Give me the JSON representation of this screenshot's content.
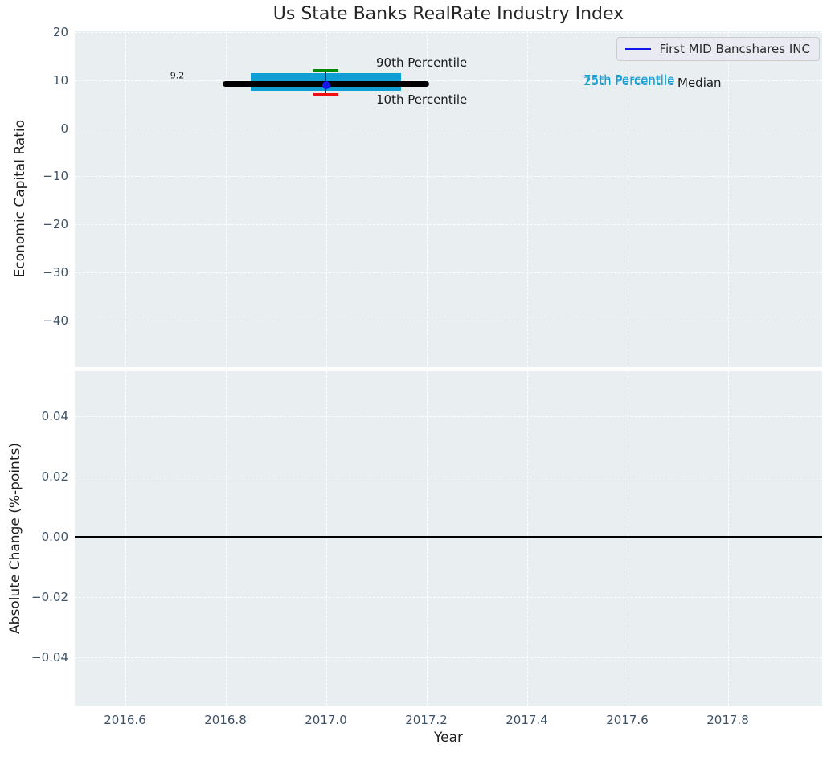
{
  "title": "Us State Banks RealRate Industry Index",
  "legend": {
    "label": "First MID Bancshares INC"
  },
  "colors": {
    "plot_bg": "#e9eef0",
    "grid": "#ffffff",
    "tick_label": "#3d5166",
    "box_fill": "#0f9fd4",
    "median_line": "#000000",
    "p90_cap": "#068a06",
    "p10_cap": "#f01010",
    "whisker": "#222222",
    "company_dot": "#1414ef",
    "legend_line": "#1414ef",
    "percentile_text_cyan": "#149fd4",
    "text_dark": "#1a1a1a",
    "zero_line": "#000000"
  },
  "chart_data": {
    "type": "boxplot",
    "title": "Us State Banks RealRate Industry Index",
    "x": {
      "label": "Year",
      "lim": [
        2016.5,
        2017.988
      ],
      "ticks": [
        2016.6,
        2016.8,
        2017.0,
        2017.2,
        2017.4,
        2017.6,
        2017.8
      ],
      "tick_labels": [
        "2016.6",
        "2016.8",
        "2017.0",
        "2017.2",
        "2017.4",
        "2017.6",
        "2017.8"
      ]
    },
    "panels": [
      {
        "name": "economic-capital-ratio",
        "ylabel": "Economic Capital Ratio",
        "ylim": [
          -49.7,
          20.33
        ],
        "yticks": [
          20,
          10,
          0,
          -10,
          -20,
          -30,
          -40
        ],
        "ytick_format": "int",
        "grid": true,
        "boxplot": {
          "year": 2017.0,
          "median": 9.2,
          "p25": 7.8,
          "p75": 11.5,
          "p10": 7.1,
          "p90": 12.1,
          "company_value": 9.0,
          "median_line_years": [
            2016.8,
            2017.2
          ],
          "box_years": [
            2016.85,
            2017.15
          ],
          "cap_years": [
            2016.975,
            2017.025
          ]
        },
        "annotations": [
          {
            "text": "9.2",
            "x": 2016.69,
            "y": 11.0,
            "size": 11,
            "color": "#1a1a1a"
          },
          {
            "text": "90th Percentile",
            "x": 2017.1,
            "y": 13.6,
            "size": 15,
            "color": "#1a1a1a"
          },
          {
            "text": "10th Percentile",
            "x": 2017.1,
            "y": 6.0,
            "size": 15,
            "color": "#1a1a1a"
          },
          {
            "text": "75th Percentile",
            "x": 2017.513,
            "y": 10.1,
            "size": 15,
            "color": "#149fd4"
          },
          {
            "text": "25th Percentile",
            "x": 2017.513,
            "y": 9.85,
            "size": 15,
            "color": "#149fd4"
          },
          {
            "text": "Median",
            "x": 2017.7,
            "y": 9.5,
            "size": 15,
            "color": "#1a1a1a"
          }
        ]
      },
      {
        "name": "absolute-change",
        "ylabel": "Absolute Change (%-points)",
        "ylim": [
          -0.0561,
          0.0549
        ],
        "yticks": [
          0.04,
          0.02,
          0,
          -0.02,
          -0.04
        ],
        "ytick_format": "fixed2",
        "grid": true,
        "zero_line": 0.0
      }
    ]
  }
}
